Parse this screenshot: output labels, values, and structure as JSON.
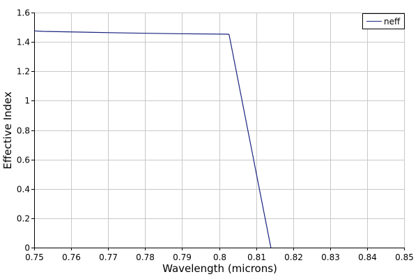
{
  "chart_data": {
    "type": "line",
    "title": "",
    "xlabel": "Wavelength (microns)",
    "ylabel": "Effective Index",
    "xlim": [
      0.75,
      0.85
    ],
    "ylim": [
      0,
      1.6
    ],
    "xticks": [
      0.75,
      0.76,
      0.77,
      0.78,
      0.79,
      0.8,
      0.81,
      0.82,
      0.83,
      0.84,
      0.85
    ],
    "xtick_labels": [
      "0.75",
      "0.76",
      "0.77",
      "0.78",
      "0.79",
      "0.8",
      "0.81",
      "0.82",
      "0.83",
      "0.84",
      "0.85"
    ],
    "yticks": [
      0,
      0.2,
      0.4,
      0.6,
      0.8,
      1.0,
      1.2,
      1.4,
      1.6
    ],
    "ytick_labels": [
      "0",
      "0.2",
      "0.4",
      "0.6",
      "0.8",
      "1",
      "1.2",
      "1.4",
      "1.6"
    ],
    "grid": true,
    "legend_position": "top-right",
    "series": [
      {
        "name": "neff",
        "color": "#1a237e",
        "x": [
          0.75,
          0.7525,
          0.7625,
          0.7755,
          0.7885,
          0.8025,
          0.8027,
          0.814
        ],
        "y": [
          1.475,
          1.472,
          1.467,
          1.461,
          1.456,
          1.453,
          1.451,
          0.0
        ]
      }
    ]
  }
}
